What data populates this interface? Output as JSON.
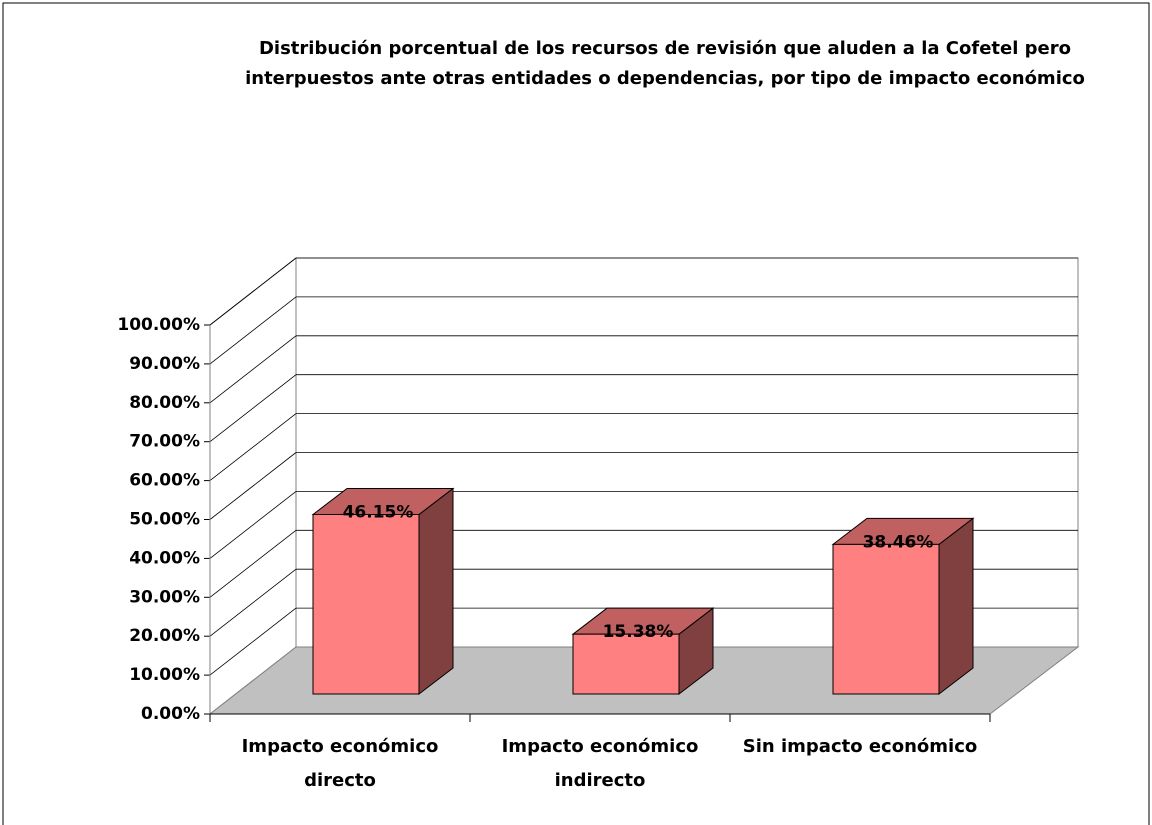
{
  "chart_data": {
    "type": "bar3d",
    "title": "Distribución porcentual de los recursos de revisión que aluden a la Cofetel pero interpuestos ante otras entidades o dependencias, por tipo de impacto económico",
    "categories": [
      "Impacto económico directo",
      "Impacto económico indirecto",
      "Sin impacto económico"
    ],
    "values": [
      46.15,
      15.38,
      38.46
    ],
    "value_labels": [
      "46.15%",
      "15.38%",
      "38.46%"
    ],
    "color": "#ff8080",
    "ylim": [
      0,
      100
    ],
    "yticks": [
      {
        "value": 0,
        "label": "0.00%"
      },
      {
        "value": 10,
        "label": "10.00%"
      },
      {
        "value": 20,
        "label": "20.00%"
      },
      {
        "value": 30,
        "label": "30.00%"
      },
      {
        "value": 40,
        "label": "40.00%"
      },
      {
        "value": 50,
        "label": "50.00%"
      },
      {
        "value": 60,
        "label": "60.00%"
      },
      {
        "value": 70,
        "label": "70.00%"
      },
      {
        "value": 80,
        "label": "80.00%"
      },
      {
        "value": 90,
        "label": "90.00%"
      },
      {
        "value": 100,
        "label": "100.00%"
      }
    ],
    "grid": true
  }
}
